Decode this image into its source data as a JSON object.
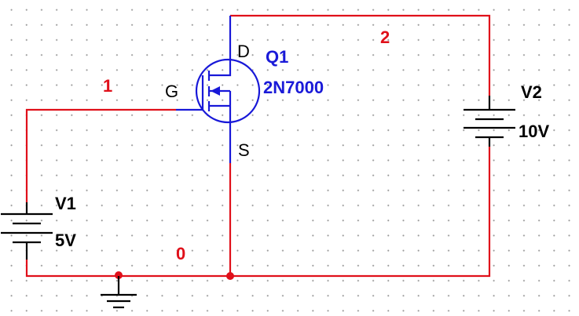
{
  "nets": {
    "n1": "1",
    "n2": "2",
    "n0": "0"
  },
  "transistor": {
    "ref": "Q1",
    "part": "2N7000",
    "pin_d": "D",
    "pin_g": "G",
    "pin_s": "S"
  },
  "source_v1": {
    "ref": "V1",
    "value": "5V"
  },
  "source_v2": {
    "ref": "V2",
    "value": "10V"
  },
  "colors": {
    "wire": "#e0101a",
    "component": "#1a1ad8",
    "label": "#000000",
    "grid_dot": "#9a9a9a"
  },
  "icons": {
    "ground": "ground-icon",
    "battery": "battery-icon",
    "mosfet": "n-channel-mosfet-icon"
  }
}
